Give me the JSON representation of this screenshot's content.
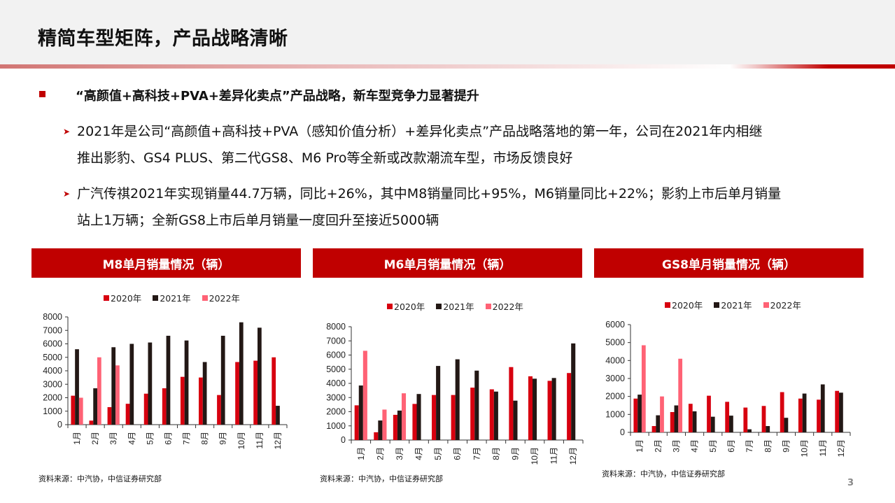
{
  "header": {
    "title": "精简车型矩阵，产品战略清晰"
  },
  "content": {
    "main_bullet": "“高颜值+高科技+PVA+差异化卖点”产品战略，新车型竞争力显著提升",
    "sub_bullets": [
      {
        "line1": "2021年是公司“高颜值+高科技+PVA（感知价值分析）+差异化卖点”产品战略落地的第一年，公司在2021年内相继",
        "line2": "推出影豹、GS4 PLUS、第二代GS8、M6 Pro等全新或改款潮流车型，市场反馈良好"
      },
      {
        "line1": "广汽传祺2021年实现销量44.7万辆，同比+26%，其中M8销量同比+95%，M6销量同比+22%；影豹上市后单月销量",
        "line2": "站上1万辆；全新GS8上市后单月销量一度回升至接近5000辆"
      }
    ]
  },
  "colors": {
    "accent": "#c00000",
    "series_2020": "#d7000f",
    "series_2021": "#231815",
    "series_2022": "#ff6275",
    "header_bg": "#f2f2f2"
  },
  "chart_data": [
    {
      "type": "bar",
      "title": "M8单月销量情况（辆）",
      "categories": [
        "1月",
        "2月",
        "3月",
        "4月",
        "5月",
        "6月",
        "7月",
        "8月",
        "9月",
        "10月",
        "11月",
        "12月"
      ],
      "series": [
        {
          "name": "2020年",
          "values": [
            2150,
            300,
            1300,
            1550,
            2300,
            2700,
            3550,
            3500,
            2200,
            4650,
            4750,
            5000
          ]
        },
        {
          "name": "2021年",
          "values": [
            5600,
            2700,
            5750,
            6000,
            6100,
            6600,
            6250,
            4650,
            6600,
            7600,
            7200,
            1400
          ]
        },
        {
          "name": "2022年",
          "values": [
            2000,
            5000,
            4400,
            null,
            null,
            null,
            null,
            null,
            null,
            null,
            null,
            null
          ]
        }
      ],
      "yticks": [
        0,
        1000,
        2000,
        3000,
        4000,
        5000,
        6000,
        7000,
        8000
      ],
      "ylim": [
        0,
        8000
      ],
      "xlabel": "",
      "ylabel": "",
      "legend_position": "top",
      "source": "资料来源：中汽协，中信证券研究部"
    },
    {
      "type": "bar",
      "title": "M6单月销量情况（辆）",
      "categories": [
        "1月",
        "2月",
        "3月",
        "4月",
        "5月",
        "6月",
        "7月",
        "8月",
        "9月",
        "10月",
        "11月",
        "12月"
      ],
      "series": [
        {
          "name": "2020年",
          "values": [
            2450,
            550,
            1780,
            2550,
            3180,
            3180,
            3700,
            3580,
            5150,
            4500,
            4180,
            4730
          ]
        },
        {
          "name": "2021年",
          "values": [
            3850,
            1380,
            2080,
            3250,
            5230,
            5700,
            4900,
            3420,
            2780,
            4330,
            4380,
            6820
          ]
        },
        {
          "name": "2022年",
          "values": [
            6300,
            2150,
            3300,
            null,
            null,
            null,
            null,
            null,
            null,
            null,
            null,
            null
          ]
        }
      ],
      "yticks": [
        0,
        1000,
        2000,
        3000,
        4000,
        5000,
        6000,
        7000,
        8000
      ],
      "ylim": [
        0,
        8000
      ],
      "xlabel": "",
      "ylabel": "",
      "legend_position": "top",
      "source": "资料来源：中汽协，中信证券研究部"
    },
    {
      "type": "bar",
      "title": "GS8单月销量情况（辆）",
      "categories": [
        "1月",
        "2月",
        "3月",
        "4月",
        "5月",
        "6月",
        "7月",
        "8月",
        "9月",
        "10月",
        "11月",
        "12月"
      ],
      "series": [
        {
          "name": "2020年",
          "values": [
            1880,
            350,
            1130,
            1590,
            2040,
            1700,
            1380,
            1470,
            2240,
            1880,
            1820,
            2310
          ]
        },
        {
          "name": "2021年",
          "values": [
            2100,
            950,
            1500,
            1170,
            870,
            930,
            170,
            350,
            810,
            2160,
            2670,
            2210
          ]
        },
        {
          "name": "2022年",
          "values": [
            4850,
            2000,
            4100,
            null,
            null,
            null,
            null,
            null,
            null,
            null,
            null,
            null
          ]
        }
      ],
      "yticks": [
        0,
        1000,
        2000,
        3000,
        4000,
        5000,
        6000
      ],
      "ylim": [
        0,
        6000
      ],
      "xlabel": "",
      "ylabel": "",
      "legend_position": "top",
      "source": "资料来源：中汽协，中信证券研究部"
    }
  ],
  "footer": {
    "page_number": "3"
  }
}
